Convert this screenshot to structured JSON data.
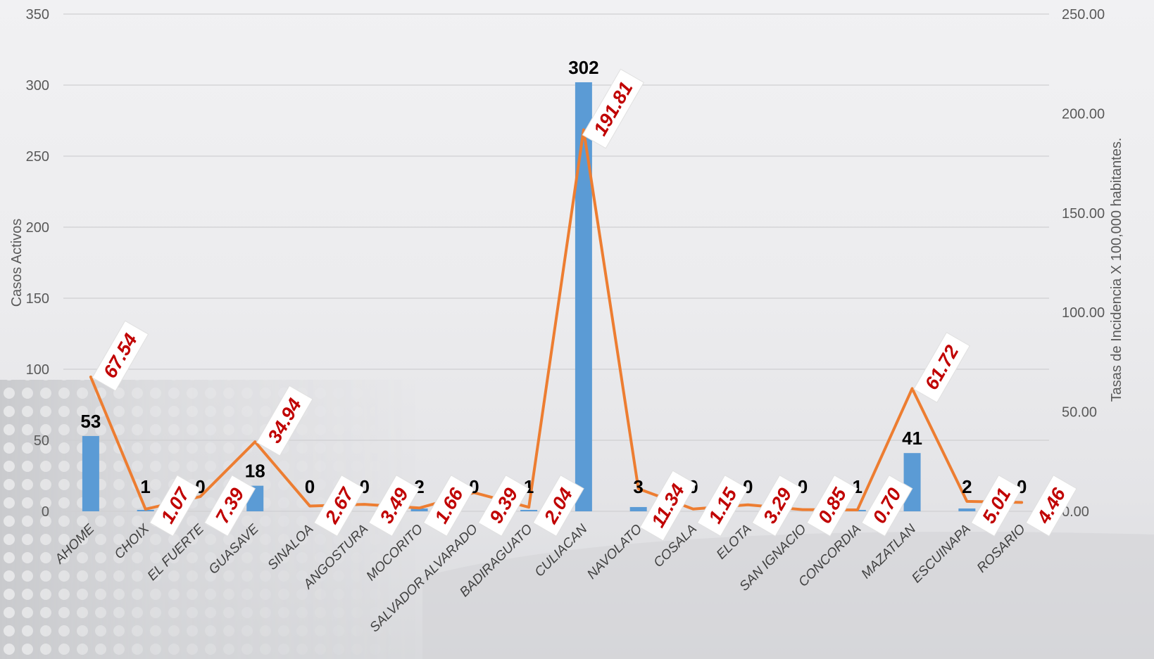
{
  "chart_data": {
    "type": "bar",
    "categories": [
      "AHOME",
      "CHOIX",
      "EL FUERTE",
      "GUASAVE",
      "SINALOA",
      "ANGOSTURA",
      "MOCORITO",
      "SALVADOR ALVARADO",
      "BADIRAGUATO",
      "CULIACAN",
      "NAVOLATO",
      "COSALA",
      "ELOTA",
      "SAN IGNACIO",
      "CONCORDIA",
      "MAZATLAN",
      "ESCUINAPA",
      "ROSARIO"
    ],
    "series": [
      {
        "type": "bar",
        "axis": "left",
        "color": "#5b9bd5",
        "values": [
          53,
          1,
          0,
          18,
          0,
          0,
          2,
          0,
          1,
          302,
          3,
          0,
          0,
          0,
          1,
          41,
          2,
          0
        ]
      },
      {
        "type": "line",
        "axis": "right",
        "color": "#ed7d31",
        "values": [
          67.54,
          1.07,
          7.39,
          34.94,
          2.67,
          3.49,
          1.66,
          9.39,
          2.04,
          191.81,
          11.34,
          1.15,
          3.29,
          0.85,
          0.7,
          61.72,
          5.01,
          4.46
        ]
      }
    ],
    "ylabel": "Casos Activos",
    "y2label": "Tasas de Incidencia X 100,000 habitantes.",
    "ylim": [
      0,
      350
    ],
    "y2lim": [
      0,
      250
    ],
    "yticks": [
      "0",
      "50",
      "100",
      "150",
      "200",
      "250",
      "300",
      "350"
    ],
    "y2ticks": [
      "0.00",
      "50.00",
      "100.00",
      "150.00",
      "200.00",
      "250.00"
    ],
    "bar_labels": [
      "53",
      "1",
      "0",
      "18",
      "0",
      "0",
      "2",
      "0",
      "1",
      "302",
      "3",
      "0",
      "0",
      "0",
      "1",
      "41",
      "2",
      "0"
    ],
    "line_labels": [
      "67.54",
      "1.07",
      "7.39",
      "34.94",
      "2.67",
      "3.49",
      "1.66",
      "9.39",
      "2.04",
      "191.81",
      "11.34",
      "1.15",
      "3.29",
      "0.85",
      "0.70",
      "61.72",
      "5.01",
      "4.46"
    ],
    "grid": true,
    "legend": "none"
  }
}
